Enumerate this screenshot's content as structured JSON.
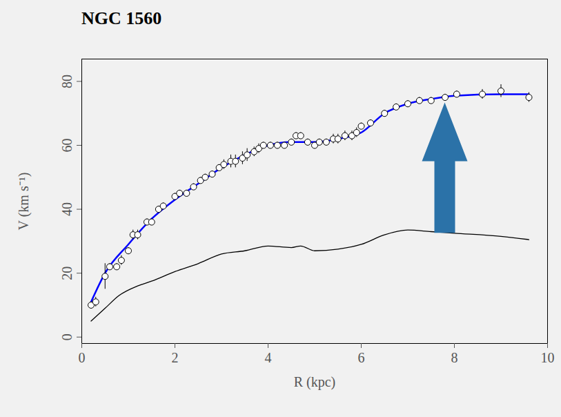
{
  "chart_data": {
    "type": "scatter",
    "title": "NGC 1560",
    "x_label": "R (kpc)",
    "y_label": "V (km s⁻¹)",
    "xlim": [
      0,
      10
    ],
    "ylim": [
      -2,
      87
    ],
    "xticks": [
      0,
      2,
      4,
      6,
      8,
      10
    ],
    "yticks": [
      0,
      20,
      40,
      60,
      80
    ],
    "grid": false,
    "series": [
      {
        "type": "scatter",
        "color": "#000000",
        "marker": "circle",
        "x": [
          0.2,
          0.3,
          0.5,
          0.6,
          0.75,
          0.85,
          1.0,
          1.1,
          1.2,
          1.4,
          1.5,
          1.65,
          1.75,
          2.0,
          2.1,
          2.25,
          2.4,
          2.55,
          2.65,
          2.8,
          2.95,
          3.05,
          3.2,
          3.3,
          3.45,
          3.55,
          3.7,
          3.8,
          3.9,
          4.05,
          4.2,
          4.35,
          4.5,
          4.6,
          4.7,
          4.85,
          5.0,
          5.1,
          5.25,
          5.4,
          5.5,
          5.65,
          5.8,
          5.9,
          6.0,
          6.2,
          6.5,
          6.75,
          7.0,
          7.25,
          7.5,
          7.8,
          8.05,
          8.6,
          9.0,
          9.6
        ],
        "values": [
          10,
          11,
          19,
          22,
          22,
          24,
          27,
          32,
          32,
          36,
          36,
          40,
          41,
          44,
          45,
          45,
          47,
          49,
          50,
          51,
          53,
          54,
          55,
          55,
          56,
          57,
          58,
          59,
          60,
          60,
          60,
          60,
          61,
          63,
          63,
          61,
          60,
          61,
          61,
          62,
          62,
          63,
          63,
          64,
          66,
          67,
          70,
          72,
          73,
          74,
          74,
          75,
          76,
          76,
          77,
          75
        ],
        "errors": [
          1,
          1.5,
          4,
          1,
          1,
          1.5,
          1,
          1.5,
          1.5,
          1,
          1,
          1,
          1,
          1,
          1,
          1,
          1,
          1,
          1,
          1,
          1,
          1.5,
          2,
          2,
          2,
          2,
          1.5,
          1.5,
          1,
          1,
          1,
          1,
          1,
          1,
          1,
          1,
          1,
          1,
          1,
          1.5,
          1.5,
          1.5,
          1.5,
          1.5,
          1,
          1,
          1,
          1,
          1,
          1,
          1,
          1,
          1,
          1.5,
          2,
          1.5
        ]
      },
      {
        "type": "line",
        "color": "#0000ff",
        "line_style": "solid",
        "x": [
          0.2,
          0.5,
          1.0,
          1.5,
          2.0,
          2.5,
          3.0,
          3.5,
          4.0,
          4.5,
          5.0,
          5.5,
          6.0,
          6.5,
          7.0,
          7.5,
          8.0,
          9.0,
          9.6
        ],
        "values": [
          11,
          20,
          29,
          37,
          43,
          48,
          53,
          57,
          60,
          61,
          61,
          62,
          64,
          70,
          73,
          74.5,
          75.5,
          76,
          76
        ]
      },
      {
        "type": "line",
        "color": "#000000",
        "line_style": "solid",
        "x": [
          0.2,
          0.5,
          0.8,
          1.2,
          1.5,
          2.0,
          2.5,
          3.0,
          3.5,
          4.0,
          4.5,
          4.7,
          5.0,
          5.5,
          6.0,
          6.5,
          7.0,
          7.5,
          8.0,
          9.0,
          9.6
        ],
        "values": [
          5,
          9,
          13,
          16,
          17.5,
          20.5,
          23,
          26,
          27,
          28.5,
          28,
          28.5,
          27,
          27.5,
          29,
          32,
          33.5,
          33,
          32.5,
          31.5,
          30.5
        ]
      }
    ]
  }
}
